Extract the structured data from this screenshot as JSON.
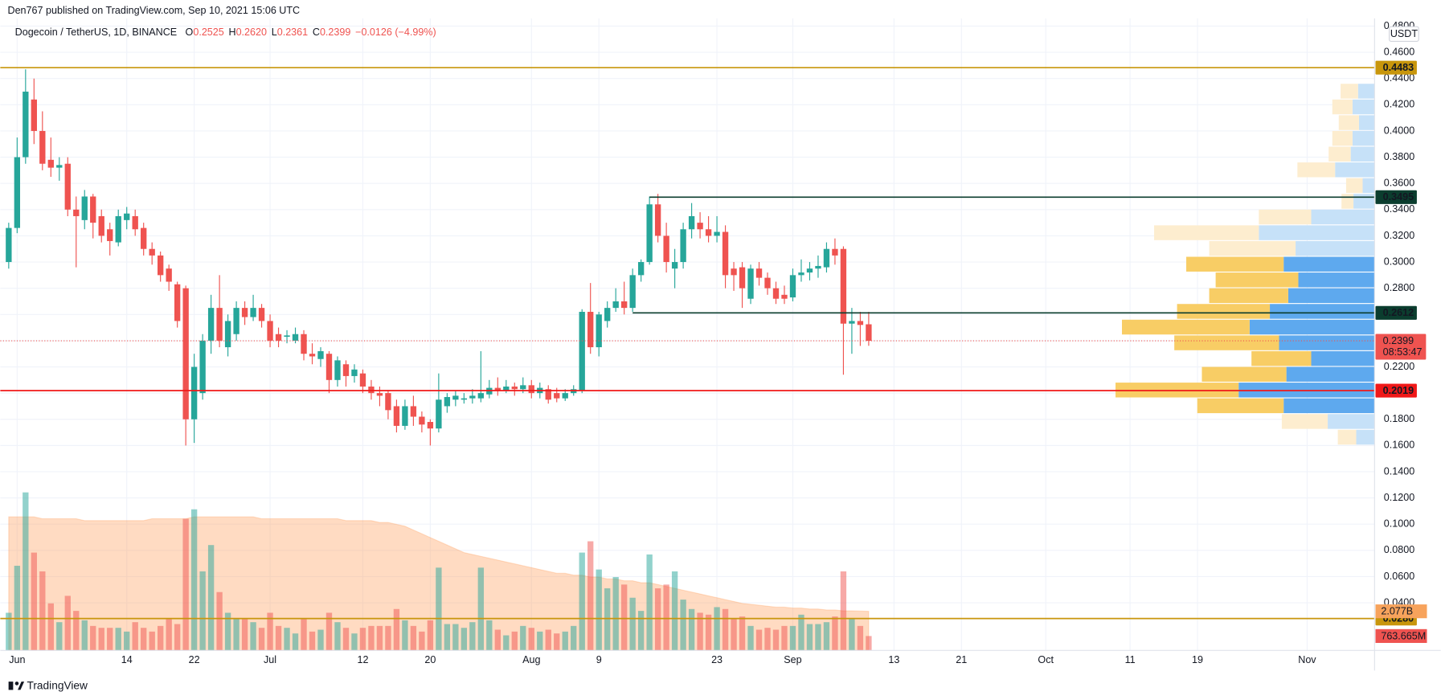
{
  "header": {
    "publisher": "Den767 published on TradingView.com, Sep 10, 2021 15:06 UTC"
  },
  "footer": {
    "brand": "TradingView"
  },
  "chart_data": {
    "type": "candlestick",
    "legend": {
      "symbol": "Dogecoin / TetherUS, 1D, BINANCE",
      "fields": [
        {
          "key": "O",
          "value": "0.2525"
        },
        {
          "key": "H",
          "value": "0.2620"
        },
        {
          "key": "L",
          "value": "0.2361"
        },
        {
          "key": "C",
          "value": "0.2399"
        }
      ],
      "change": "−0.0126 (−4.99%)"
    },
    "currency": "USDT",
    "up_color": "#26a69a",
    "down_color": "#ef5350",
    "xlim": [
      -1,
      162
    ],
    "xticks": [
      {
        "value": 1,
        "label": "Jun"
      },
      {
        "value": 14,
        "label": "14"
      },
      {
        "value": 22,
        "label": "22"
      },
      {
        "value": 31,
        "label": "Jul"
      },
      {
        "value": 42,
        "label": "12"
      },
      {
        "value": 50,
        "label": "20"
      },
      {
        "value": 62,
        "label": "Aug"
      },
      {
        "value": 70,
        "label": "9"
      },
      {
        "value": 84,
        "label": "23"
      },
      {
        "value": 93,
        "label": "Sep"
      },
      {
        "value": 105,
        "label": "13"
      },
      {
        "value": 113,
        "label": "21"
      },
      {
        "value": 123,
        "label": "Oct"
      },
      {
        "value": 133,
        "label": "11"
      },
      {
        "value": 141,
        "label": "19"
      },
      {
        "value": 154,
        "label": "Nov"
      }
    ],
    "ylim": [
      0.0037,
      0.4859
    ],
    "yticks": [
      {
        "value": 0.48,
        "label": "0.4800"
      },
      {
        "value": 0.46,
        "label": "0.4600"
      },
      {
        "value": 0.44,
        "label": "0.4400"
      },
      {
        "value": 0.42,
        "label": "0.4200"
      },
      {
        "value": 0.4,
        "label": "0.4000"
      },
      {
        "value": 0.38,
        "label": "0.3800"
      },
      {
        "value": 0.36,
        "label": "0.3600"
      },
      {
        "value": 0.34,
        "label": "0.3400"
      },
      {
        "value": 0.32,
        "label": "0.3200"
      },
      {
        "value": 0.3,
        "label": "0.3000"
      },
      {
        "value": 0.28,
        "label": "0.2800"
      },
      {
        "value": 0.26,
        "label": "0.2600"
      },
      {
        "value": 0.24,
        "label": "0.2400"
      },
      {
        "value": 0.22,
        "label": "0.2200"
      },
      {
        "value": 0.2,
        "label": "0.2000"
      },
      {
        "value": 0.18,
        "label": "0.1800"
      },
      {
        "value": 0.16,
        "label": "0.1600"
      },
      {
        "value": 0.14,
        "label": "0.1400"
      },
      {
        "value": 0.12,
        "label": "0.1200"
      },
      {
        "value": 0.1,
        "label": "0.1000"
      },
      {
        "value": 0.08,
        "label": "0.0800"
      },
      {
        "value": 0.06,
        "label": "0.0600"
      },
      {
        "value": 0.04,
        "label": "0.0400"
      }
    ],
    "grid": true,
    "ohlc": [
      [
        0.3,
        0.33,
        0.295,
        0.326
      ],
      [
        0.326,
        0.395,
        0.322,
        0.38
      ],
      [
        0.38,
        0.447,
        0.375,
        0.43
      ],
      [
        0.424,
        0.44,
        0.39,
        0.4
      ],
      [
        0.4,
        0.415,
        0.37,
        0.375
      ],
      [
        0.378,
        0.395,
        0.365,
        0.372
      ],
      [
        0.372,
        0.38,
        0.362,
        0.374
      ],
      [
        0.375,
        0.38,
        0.335,
        0.34
      ],
      [
        0.34,
        0.35,
        0.296,
        0.335
      ],
      [
        0.332,
        0.355,
        0.325,
        0.35
      ],
      [
        0.35,
        0.352,
        0.318,
        0.33
      ],
      [
        0.335,
        0.34,
        0.315,
        0.32
      ],
      [
        0.325,
        0.33,
        0.305,
        0.316
      ],
      [
        0.315,
        0.34,
        0.312,
        0.335
      ],
      [
        0.332,
        0.342,
        0.325,
        0.337
      ],
      [
        0.335,
        0.34,
        0.32,
        0.325
      ],
      [
        0.326,
        0.33,
        0.305,
        0.31
      ],
      [
        0.31,
        0.315,
        0.298,
        0.305
      ],
      [
        0.305,
        0.308,
        0.285,
        0.29
      ],
      [
        0.295,
        0.298,
        0.278,
        0.285
      ],
      [
        0.283,
        0.285,
        0.25,
        0.255
      ],
      [
        0.28,
        0.282,
        0.16,
        0.18
      ],
      [
        0.18,
        0.23,
        0.162,
        0.22
      ],
      [
        0.2,
        0.245,
        0.195,
        0.24
      ],
      [
        0.24,
        0.275,
        0.23,
        0.265
      ],
      [
        0.265,
        0.29,
        0.235,
        0.24
      ],
      [
        0.235,
        0.26,
        0.228,
        0.255
      ],
      [
        0.245,
        0.27,
        0.24,
        0.265
      ],
      [
        0.265,
        0.27,
        0.252,
        0.258
      ],
      [
        0.258,
        0.275,
        0.255,
        0.265
      ],
      [
        0.265,
        0.268,
        0.25,
        0.255
      ],
      [
        0.255,
        0.26,
        0.235,
        0.24
      ],
      [
        0.245,
        0.25,
        0.235,
        0.24
      ],
      [
        0.243,
        0.248,
        0.238,
        0.244
      ],
      [
        0.24,
        0.25,
        0.238,
        0.245
      ],
      [
        0.245,
        0.248,
        0.225,
        0.23
      ],
      [
        0.23,
        0.238,
        0.222,
        0.228
      ],
      [
        0.226,
        0.235,
        0.22,
        0.232
      ],
      [
        0.23,
        0.232,
        0.2,
        0.21
      ],
      [
        0.21,
        0.228,
        0.205,
        0.225
      ],
      [
        0.222,
        0.225,
        0.205,
        0.213
      ],
      [
        0.213,
        0.222,
        0.208,
        0.218
      ],
      [
        0.215,
        0.218,
        0.2,
        0.205
      ],
      [
        0.205,
        0.21,
        0.195,
        0.2
      ],
      [
        0.2,
        0.205,
        0.19,
        0.198
      ],
      [
        0.2,
        0.202,
        0.18,
        0.187
      ],
      [
        0.19,
        0.195,
        0.17,
        0.175
      ],
      [
        0.175,
        0.195,
        0.172,
        0.19
      ],
      [
        0.19,
        0.198,
        0.175,
        0.182
      ],
      [
        0.182,
        0.186,
        0.17,
        0.176
      ],
      [
        0.178,
        0.18,
        0.16,
        0.173
      ],
      [
        0.173,
        0.215,
        0.17,
        0.195
      ],
      [
        0.19,
        0.2,
        0.185,
        0.197
      ],
      [
        0.195,
        0.202,
        0.19,
        0.198
      ],
      [
        0.195,
        0.2,
        0.192,
        0.196
      ],
      [
        0.196,
        0.203,
        0.192,
        0.198
      ],
      [
        0.196,
        0.232,
        0.193,
        0.2
      ],
      [
        0.199,
        0.21,
        0.196,
        0.204
      ],
      [
        0.204,
        0.212,
        0.198,
        0.202
      ],
      [
        0.202,
        0.21,
        0.2,
        0.205
      ],
      [
        0.205,
        0.208,
        0.198,
        0.203
      ],
      [
        0.203,
        0.212,
        0.2,
        0.206
      ],
      [
        0.206,
        0.21,
        0.196,
        0.2
      ],
      [
        0.2,
        0.208,
        0.196,
        0.204
      ],
      [
        0.203,
        0.206,
        0.192,
        0.195
      ],
      [
        0.2,
        0.204,
        0.193,
        0.196
      ],
      [
        0.196,
        0.203,
        0.194,
        0.2
      ],
      [
        0.2,
        0.206,
        0.198,
        0.203
      ],
      [
        0.202,
        0.264,
        0.2,
        0.262
      ],
      [
        0.262,
        0.284,
        0.23,
        0.235
      ],
      [
        0.235,
        0.262,
        0.228,
        0.26
      ],
      [
        0.255,
        0.27,
        0.25,
        0.265
      ],
      [
        0.265,
        0.28,
        0.262,
        0.27
      ],
      [
        0.27,
        0.285,
        0.26,
        0.265
      ],
      [
        0.265,
        0.295,
        0.262,
        0.29
      ],
      [
        0.29,
        0.302,
        0.285,
        0.3
      ],
      [
        0.3,
        0.35,
        0.298,
        0.344
      ],
      [
        0.344,
        0.352,
        0.315,
        0.32
      ],
      [
        0.32,
        0.33,
        0.292,
        0.3
      ],
      [
        0.295,
        0.31,
        0.28,
        0.3
      ],
      [
        0.3,
        0.33,
        0.295,
        0.325
      ],
      [
        0.325,
        0.345,
        0.318,
        0.335
      ],
      [
        0.33,
        0.338,
        0.318,
        0.325
      ],
      [
        0.325,
        0.335,
        0.315,
        0.32
      ],
      [
        0.32,
        0.335,
        0.315,
        0.323
      ],
      [
        0.323,
        0.328,
        0.28,
        0.29
      ],
      [
        0.295,
        0.3,
        0.278,
        0.29
      ],
      [
        0.296,
        0.3,
        0.265,
        0.28
      ],
      [
        0.272,
        0.298,
        0.268,
        0.295
      ],
      [
        0.295,
        0.3,
        0.282,
        0.288
      ],
      [
        0.288,
        0.292,
        0.275,
        0.28
      ],
      [
        0.28,
        0.285,
        0.268,
        0.272
      ],
      [
        0.275,
        0.282,
        0.268,
        0.272
      ],
      [
        0.273,
        0.295,
        0.27,
        0.29
      ],
      [
        0.29,
        0.302,
        0.285,
        0.292
      ],
      [
        0.292,
        0.3,
        0.286,
        0.295
      ],
      [
        0.295,
        0.305,
        0.288,
        0.297
      ],
      [
        0.296,
        0.315,
        0.292,
        0.31
      ],
      [
        0.31,
        0.318,
        0.298,
        0.305
      ],
      [
        0.31,
        0.312,
        0.214,
        0.253
      ],
      [
        0.253,
        0.265,
        0.23,
        0.255
      ],
      [
        0.255,
        0.262,
        0.236,
        0.252
      ],
      [
        0.2525,
        0.262,
        0.2361,
        0.2399
      ]
    ],
    "volume_ylim": [
      0,
      33.6
    ],
    "volume": [
      2.0,
      4.5,
      8.4,
      5.2,
      4.2,
      2.5,
      1.5,
      2.9,
      2.1,
      1.6,
      1.3,
      1.2,
      1.2,
      1.2,
      1.0,
      1.5,
      1.2,
      1.0,
      1.3,
      1.7,
      1.4,
      7.0,
      7.5,
      4.2,
      5.6,
      3.1,
      2.0,
      1.7,
      1.7,
      1.5,
      1.2,
      2.0,
      1.3,
      1.2,
      0.9,
      1.7,
      1.0,
      1.1,
      2.0,
      1.5,
      1.2,
      0.9,
      1.2,
      1.3,
      1.3,
      1.3,
      2.2,
      1.6,
      1.3,
      1.0,
      1.6,
      4.4,
      1.4,
      1.4,
      1.2,
      1.5,
      4.4,
      1.6,
      1.1,
      0.8,
      1.0,
      1.3,
      1.2,
      1.0,
      1.1,
      0.9,
      1.0,
      1.3,
      5.2,
      5.8,
      4.3,
      3.3,
      3.9,
      3.5,
      2.8,
      2.1,
      5.1,
      3.3,
      3.5,
      4.2,
      2.7,
      2.2,
      2.0,
      1.9,
      2.3,
      2.2,
      1.7,
      1.8,
      1.3,
      1.1,
      1.2,
      1.1,
      1.3,
      1.3,
      1.9,
      1.4,
      1.4,
      1.5,
      1.8,
      4.2,
      1.7,
      1.3,
      0.763665
    ],
    "volume_value_label": "763.665M",
    "volume_ma": [
      7.1,
      7.1,
      7.1,
      7.1,
      7.0,
      7.0,
      7.0,
      7.0,
      7.0,
      6.9,
      6.9,
      6.9,
      6.9,
      6.9,
      6.9,
      6.9,
      6.9,
      7.0,
      7.0,
      7.0,
      7.0,
      7.0,
      7.1,
      7.1,
      7.1,
      7.1,
      7.1,
      7.1,
      7.1,
      7.1,
      7.0,
      7.0,
      7.0,
      7.0,
      7.0,
      7.0,
      7.0,
      7.0,
      7.0,
      7.0,
      6.9,
      6.9,
      6.9,
      6.9,
      6.8,
      6.8,
      6.7,
      6.6,
      6.4,
      6.2,
      6.0,
      5.8,
      5.6,
      5.4,
      5.2,
      5.1,
      5.0,
      4.9,
      4.8,
      4.7,
      4.6,
      4.5,
      4.4,
      4.3,
      4.2,
      4.1,
      4.1,
      4.0,
      4.0,
      3.9,
      3.9,
      3.8,
      3.8,
      3.7,
      3.7,
      3.6,
      3.6,
      3.5,
      3.4,
      3.3,
      3.2,
      3.1,
      3.0,
      2.9,
      2.8,
      2.7,
      2.6,
      2.5,
      2.45,
      2.4,
      2.35,
      2.3,
      2.3,
      2.25,
      2.25,
      2.2,
      2.2,
      2.15,
      2.15,
      2.1,
      2.1,
      2.09,
      2.077
    ],
    "volume_ma_value_label": "2.077B",
    "levels": [
      {
        "value": 0.4483,
        "color": "#c8960c"
      },
      {
        "value": 0.3495,
        "color": "#0b3d2e",
        "from": 76
      },
      {
        "value": 0.2612,
        "color": "#0b3d2e",
        "from": 74
      },
      {
        "value": 0.2019,
        "color": "#f01818"
      },
      {
        "value": 0.028,
        "label": "0.0280",
        "color": "#c8960c"
      }
    ],
    "last": {
      "value": 0.2399,
      "countdown": "08:53:47"
    },
    "volume_profile": {
      "bins": [
        0.16,
        0.172,
        0.184,
        0.196,
        0.208,
        0.22,
        0.232,
        0.244,
        0.256,
        0.268,
        0.28,
        0.292,
        0.304,
        0.316,
        0.328,
        0.34,
        0.352,
        0.364,
        0.376,
        0.388,
        0.4,
        0.412,
        0.424,
        0.436
      ],
      "up": [
        20,
        51,
        99,
        148,
        96,
        69,
        104,
        136,
        114,
        94,
        83,
        99,
        86,
        126,
        69,
        23,
        13,
        43,
        26,
        24,
        17,
        24,
        18
      ],
      "down": [
        20,
        50,
        94,
        134,
        92,
        65,
        114,
        139,
        101,
        86,
        90,
        106,
        94,
        114,
        57,
        13,
        18,
        41,
        24,
        22,
        22,
        22,
        19
      ],
      "xlim": [
        0,
        1496
      ],
      "value_area": [
        0.184,
        0.304
      ],
      "up_color": "#5ea9ee",
      "down_color": "#f8cd65",
      "up_light": "#c6e1f8",
      "down_light": "#fdedcf"
    }
  }
}
